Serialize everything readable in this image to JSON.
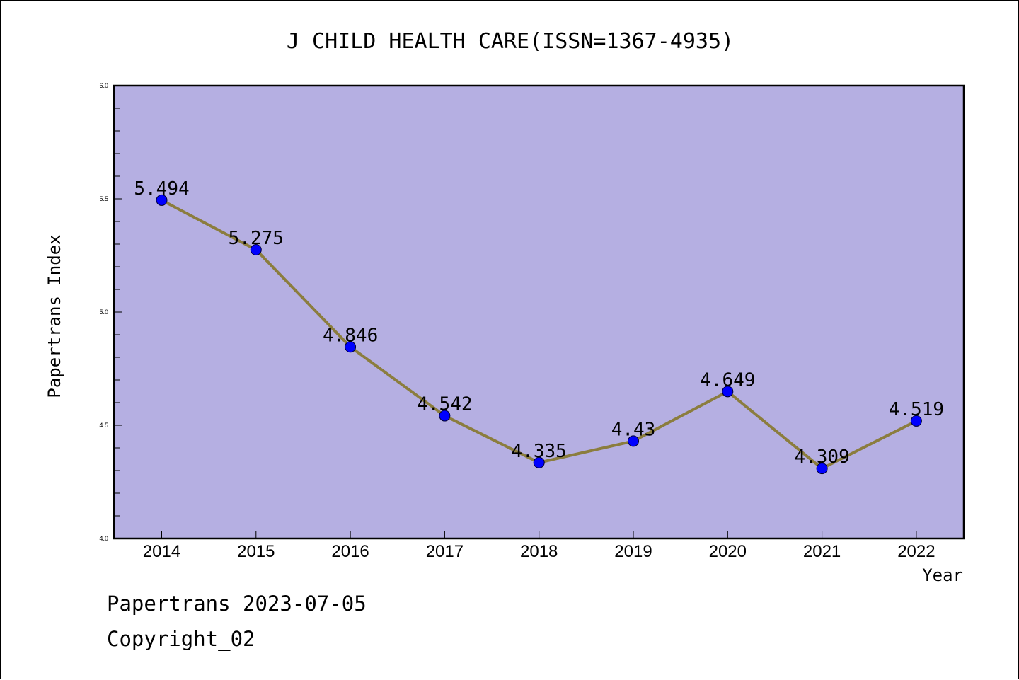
{
  "chart_data": {
    "type": "line",
    "title": "J CHILD HEALTH CARE(ISSN=1367-4935)",
    "xlabel": "Year",
    "ylabel": "Papertrans Index",
    "categories": [
      "2014",
      "2015",
      "2016",
      "2017",
      "2018",
      "2019",
      "2020",
      "2021",
      "2022"
    ],
    "values": [
      5.494,
      5.275,
      4.846,
      4.542,
      4.335,
      4.43,
      4.649,
      4.309,
      4.519
    ],
    "data_labels": [
      "5.494",
      "5.275",
      "4.846",
      "4.542",
      "4.335",
      "4.43",
      "4.649",
      "4.309",
      "4.519"
    ],
    "ylim": [
      4.0,
      6.0
    ],
    "yticks": [
      "4.0",
      "4.5",
      "5.0",
      "5.5",
      "6.0"
    ],
    "grid": false,
    "colors": {
      "plot_background": "#b5afe2",
      "line": "#8b7d3e",
      "marker": "#0000ff"
    }
  },
  "footer": {
    "line1": "Papertrans 2023-07-05",
    "line2": "Copyright_02"
  }
}
